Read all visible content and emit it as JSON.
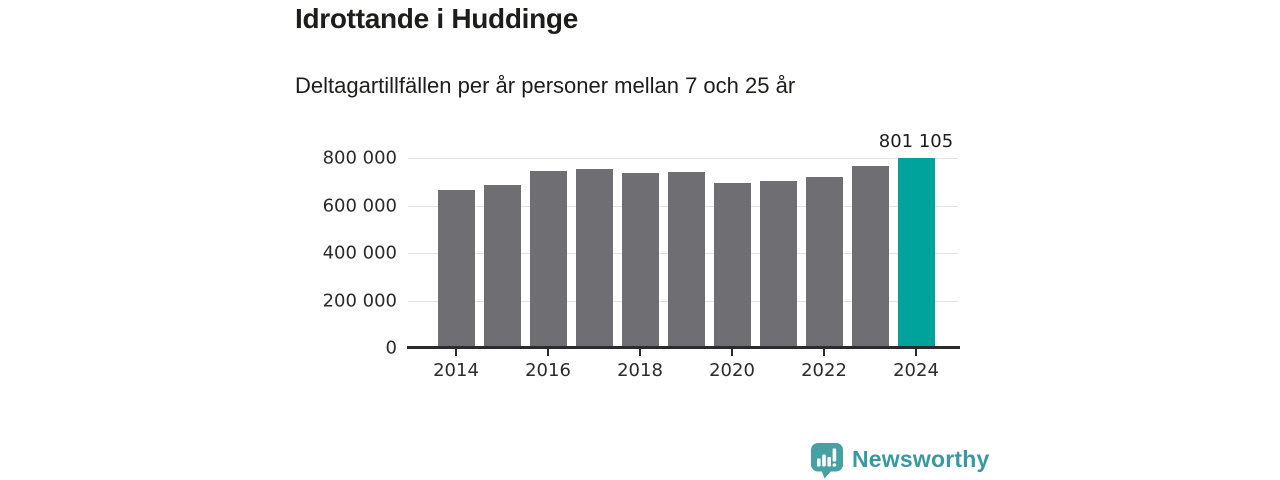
{
  "header": {
    "title": "Idrottande i Huddinge",
    "subtitle": "Deltagartillfällen per år personer mellan 7 och 25 år"
  },
  "chart_data": {
    "type": "bar",
    "title": "Idrottande i Huddinge",
    "subtitle": "Deltagartillfällen per år personer mellan 7 och 25 år",
    "categories": [
      "2014",
      "2015",
      "2016",
      "2017",
      "2018",
      "2019",
      "2020",
      "2021",
      "2022",
      "2023",
      "2024"
    ],
    "values": [
      665000,
      687000,
      747000,
      752000,
      736000,
      742000,
      694000,
      705000,
      719000,
      768000,
      801105
    ],
    "ylim": [
      0,
      800000
    ],
    "y_tick_values": [
      0,
      200000,
      400000,
      600000,
      800000
    ],
    "y_tick_labels": [
      "0",
      "200 000",
      "400 000",
      "600 000",
      "800 000"
    ],
    "x_tick_indices": [
      0,
      2,
      4,
      6,
      8,
      10
    ],
    "x_tick_labels": [
      "2014",
      "2016",
      "2018",
      "2020",
      "2022",
      "2024"
    ],
    "grid": true,
    "legend_position": "none",
    "xlabel": "",
    "ylabel": "",
    "bar_color": "#6f6f73",
    "highlight": {
      "index": 10,
      "label": "801 105",
      "color": "#00a39b"
    }
  },
  "footer": {
    "brand": "Newsworthy",
    "brand_color": "#3999a1",
    "logo_icon": "newsworthy-chart-bubble-icon",
    "logo_bubble_color": "#45a1a3"
  }
}
